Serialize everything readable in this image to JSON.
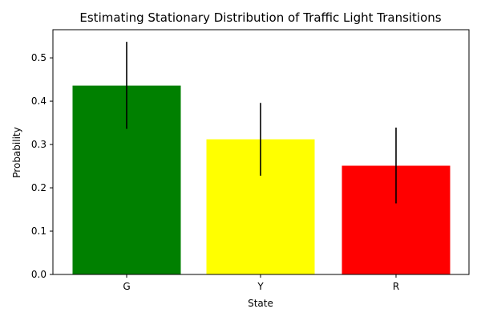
{
  "chart_data": {
    "type": "bar",
    "title": "Estimating Stationary Distribution of Traffic Light Transitions",
    "xlabel": "State",
    "ylabel": "Probability",
    "categories": [
      "G",
      "Y",
      "R"
    ],
    "values": [
      0.436,
      0.312,
      0.251
    ],
    "error_low": [
      0.336,
      0.228,
      0.164
    ],
    "error_high": [
      0.537,
      0.396,
      0.339
    ],
    "colors": [
      "#008000",
      "#ffff00",
      "#ff0000"
    ],
    "error_color": "#000000",
    "ylim": [
      0,
      0.565
    ],
    "yticks": [
      0.0,
      0.1,
      0.2,
      0.3,
      0.4,
      0.5
    ],
    "ytick_labels": [
      "0.0",
      "0.1",
      "0.2",
      "0.3",
      "0.4",
      "0.5"
    ],
    "grid": false,
    "legend": "none"
  }
}
